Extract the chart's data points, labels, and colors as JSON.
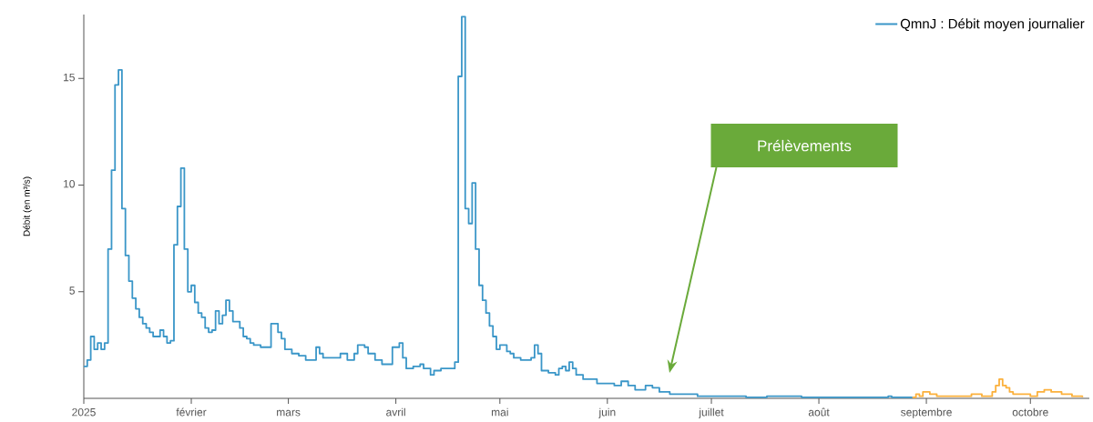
{
  "chart_data": {
    "type": "step",
    "ylabel": "Débit (en m³/s)",
    "xlim": [
      "2025-01-01",
      "2025-10-18"
    ],
    "xticks": [
      {
        "value": "2025-01-01",
        "label": "2025"
      },
      {
        "value": "2025-02-01",
        "label": "février"
      },
      {
        "value": "2025-03-01",
        "label": "mars"
      },
      {
        "value": "2025-04-01",
        "label": "avril"
      },
      {
        "value": "2025-05-01",
        "label": "mai"
      },
      {
        "value": "2025-06-01",
        "label": "juin"
      },
      {
        "value": "2025-07-01",
        "label": "juillet"
      },
      {
        "value": "2025-08-01",
        "label": "août"
      },
      {
        "value": "2025-09-01",
        "label": "septembre"
      },
      {
        "value": "2025-10-01",
        "label": "octobre"
      }
    ],
    "ylim": [
      0,
      18
    ],
    "yticks": [
      5,
      10,
      15
    ],
    "legend": "top right",
    "marker": "none",
    "line_style": "solid",
    "series": [
      {
        "name": "QmnJ : Débit moyen journalier",
        "color": "#3a96c8",
        "x": [
          "2025-01-01",
          "2025-01-02",
          "2025-01-03",
          "2025-01-04",
          "2025-01-05",
          "2025-01-06",
          "2025-01-07",
          "2025-01-08",
          "2025-01-09",
          "2025-01-10",
          "2025-01-11",
          "2025-01-12",
          "2025-01-13",
          "2025-01-14",
          "2025-01-15",
          "2025-01-16",
          "2025-01-17",
          "2025-01-18",
          "2025-01-19",
          "2025-01-20",
          "2025-01-21",
          "2025-01-23",
          "2025-01-24",
          "2025-01-25",
          "2025-01-26",
          "2025-01-27",
          "2025-01-28",
          "2025-01-29",
          "2025-01-30",
          "2025-01-31",
          "2025-02-01",
          "2025-02-02",
          "2025-02-03",
          "2025-02-04",
          "2025-02-05",
          "2025-02-06",
          "2025-02-07",
          "2025-02-08",
          "2025-02-09",
          "2025-02-10",
          "2025-02-11",
          "2025-02-12",
          "2025-02-13",
          "2025-02-15",
          "2025-02-16",
          "2025-02-17",
          "2025-02-18",
          "2025-02-19",
          "2025-02-21",
          "2025-02-24",
          "2025-02-26",
          "2025-02-27",
          "2025-02-28",
          "2025-03-02",
          "2025-03-04",
          "2025-03-06",
          "2025-03-09",
          "2025-03-10",
          "2025-03-11",
          "2025-03-16",
          "2025-03-18",
          "2025-03-20",
          "2025-03-21",
          "2025-03-23",
          "2025-03-24",
          "2025-03-26",
          "2025-03-28",
          "2025-03-31",
          "2025-04-02",
          "2025-04-03",
          "2025-04-04",
          "2025-04-06",
          "2025-04-08",
          "2025-04-09",
          "2025-04-11",
          "2025-04-12",
          "2025-04-14",
          "2025-04-18",
          "2025-04-19",
          "2025-04-20",
          "2025-04-21",
          "2025-04-22",
          "2025-04-23",
          "2025-04-24",
          "2025-04-25",
          "2025-04-26",
          "2025-04-27",
          "2025-04-28",
          "2025-04-29",
          "2025-04-30",
          "2025-05-01",
          "2025-05-03",
          "2025-05-04",
          "2025-05-05",
          "2025-05-07",
          "2025-05-10",
          "2025-05-11",
          "2025-05-12",
          "2025-05-13",
          "2025-05-15",
          "2025-05-17",
          "2025-05-18",
          "2025-05-19",
          "2025-05-20",
          "2025-05-21",
          "2025-05-22",
          "2025-05-23",
          "2025-05-25",
          "2025-05-27",
          "2025-05-29",
          "2025-06-03",
          "2025-06-05",
          "2025-06-07",
          "2025-06-09",
          "2025-06-12",
          "2025-06-14",
          "2025-06-16",
          "2025-06-19",
          "2025-06-27",
          "2025-07-03",
          "2025-07-11",
          "2025-07-17",
          "2025-07-27",
          "2025-08-21",
          "2025-08-22",
          "2025-08-28"
        ],
        "values": [
          1.5,
          1.8,
          2.9,
          2.3,
          2.6,
          2.3,
          2.6,
          7.0,
          10.7,
          14.7,
          15.4,
          8.9,
          6.7,
          5.5,
          4.7,
          4.2,
          3.8,
          3.5,
          3.3,
          3.1,
          2.9,
          3.2,
          2.9,
          2.6,
          2.7,
          7.2,
          9.0,
          10.8,
          7.0,
          5.0,
          5.3,
          4.5,
          4.0,
          3.8,
          3.3,
          3.1,
          3.2,
          4.1,
          3.5,
          3.9,
          4.6,
          4.1,
          3.6,
          3.3,
          2.9,
          2.8,
          2.6,
          2.5,
          2.4,
          3.5,
          3.1,
          2.8,
          2.3,
          2.1,
          2.0,
          1.8,
          2.4,
          2.1,
          1.9,
          2.1,
          1.8,
          2.1,
          2.5,
          2.4,
          2.1,
          1.8,
          1.6,
          2.4,
          2.6,
          1.9,
          1.4,
          1.5,
          1.6,
          1.4,
          1.1,
          1.3,
          1.4,
          1.7,
          15.1,
          17.9,
          8.9,
          8.2,
          10.1,
          7.0,
          5.3,
          4.6,
          4.0,
          3.4,
          2.9,
          2.3,
          2.5,
          2.2,
          2.1,
          1.9,
          1.8,
          1.9,
          2.5,
          2.1,
          1.3,
          1.2,
          1.1,
          1.4,
          1.5,
          1.3,
          1.7,
          1.4,
          1.1,
          0.9,
          0.9,
          0.7,
          0.6,
          0.8,
          0.6,
          0.4,
          0.6,
          0.5,
          0.3,
          0.2,
          0.1,
          0.1,
          0.05,
          0.1,
          0.05,
          0.1,
          0.05,
          0.05
        ]
      },
      {
        "color": "#fbb03b",
        "x": [
          "2025-08-28",
          "2025-08-29",
          "2025-08-30",
          "2025-08-31",
          "2025-09-02",
          "2025-09-04",
          "2025-09-06",
          "2025-09-10",
          "2025-09-12",
          "2025-09-14",
          "2025-09-16",
          "2025-09-17",
          "2025-09-20",
          "2025-09-21",
          "2025-09-22",
          "2025-09-23",
          "2025-09-24",
          "2025-09-25",
          "2025-09-26",
          "2025-09-29",
          "2025-10-01",
          "2025-10-03",
          "2025-10-05",
          "2025-10-07",
          "2025-10-10",
          "2025-10-13",
          "2025-10-16"
        ],
        "values": [
          0.05,
          0.2,
          0.1,
          0.3,
          0.2,
          0.1,
          0.1,
          0.1,
          0.1,
          0.2,
          0.2,
          0.1,
          0.3,
          0.6,
          0.9,
          0.6,
          0.5,
          0.3,
          0.2,
          0.2,
          0.1,
          0.3,
          0.4,
          0.3,
          0.2,
          0.1,
          0.05
        ]
      }
    ],
    "annotations": [
      "Prélèvements"
    ]
  }
}
